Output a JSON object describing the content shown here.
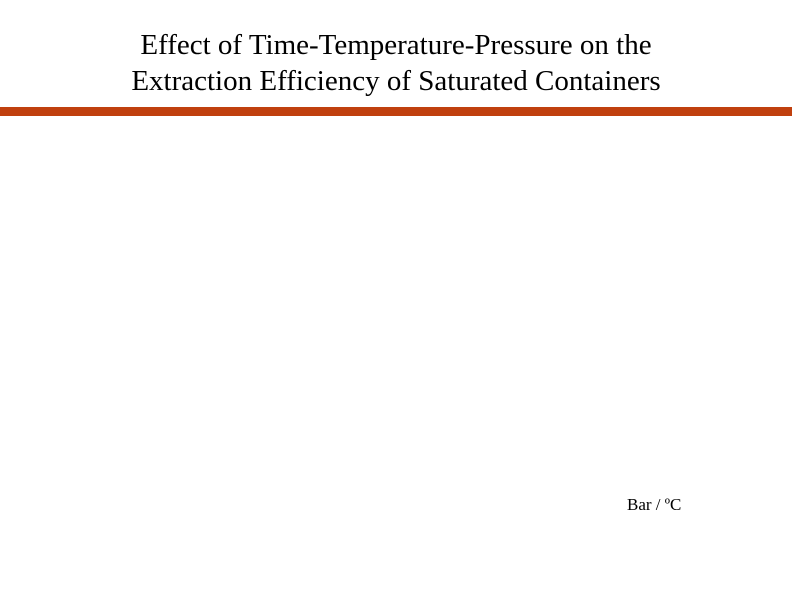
{
  "slide": {
    "title_line1": "Effect of Time-Temperature-Pressure on the",
    "title_line2": "Extraction Efficiency of Saturated Containers",
    "rule_color": "#c0400e",
    "axis_label": "Bar / ºC"
  }
}
